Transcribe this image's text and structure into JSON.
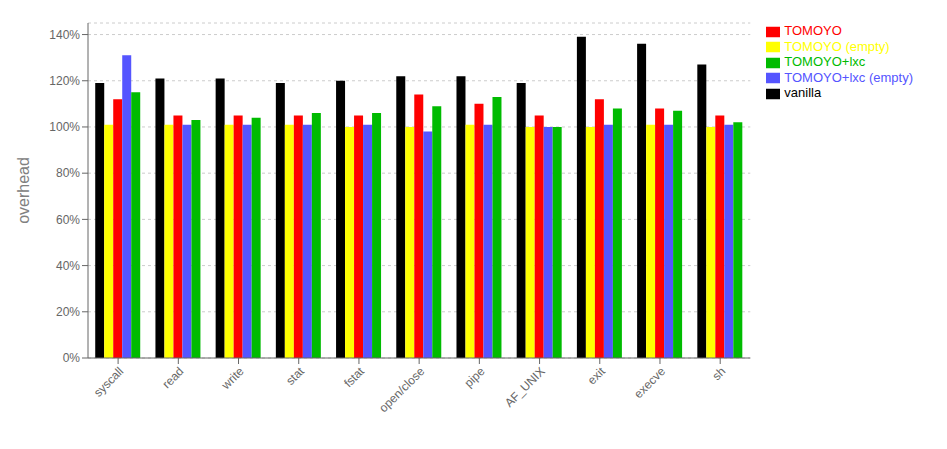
{
  "chart_data": {
    "type": "bar",
    "categories": [
      "syscall",
      "read",
      "write",
      "stat",
      "fstat",
      "open/close",
      "pipe",
      "AF_UNIX",
      "exit",
      "execve",
      "sh"
    ],
    "series": [
      {
        "name": "vanilla",
        "color": "#000000",
        "values": [
          119,
          121,
          121,
          119,
          120,
          122,
          122,
          119,
          139,
          136,
          127
        ]
      },
      {
        "name": "TOMOYO (empty)",
        "color": "#ffff00",
        "values": [
          101,
          101,
          101,
          101,
          100,
          100,
          101,
          100,
          100,
          101,
          100
        ]
      },
      {
        "name": "TOMOYO",
        "color": "#ff0000",
        "values": [
          112,
          105,
          105,
          105,
          105,
          114,
          110,
          105,
          112,
          108,
          105
        ]
      },
      {
        "name": "TOMOYO+lxc (empty)",
        "color": "#5555ff",
        "values": [
          131,
          101,
          101,
          101,
          101,
          98,
          101,
          100,
          101,
          101,
          101
        ]
      },
      {
        "name": "TOMOYO+lxc",
        "color": "#00bb00",
        "values": [
          115,
          103,
          104,
          106,
          106,
          109,
          113,
          100,
          108,
          107,
          102
        ]
      }
    ],
    "ylabel": "overhead",
    "ylim": [
      0,
      145
    ],
    "yticks": [
      {
        "value": 0,
        "label": "0%"
      },
      {
        "value": 20,
        "label": "20%"
      },
      {
        "value": 40,
        "label": "40%"
      },
      {
        "value": 60,
        "label": "60%"
      },
      {
        "value": 80,
        "label": "80%"
      },
      {
        "value": 100,
        "label": "100%"
      },
      {
        "value": 120,
        "label": "120%"
      },
      {
        "value": 140,
        "label": "140%"
      }
    ],
    "grid": true,
    "legend": "right"
  }
}
